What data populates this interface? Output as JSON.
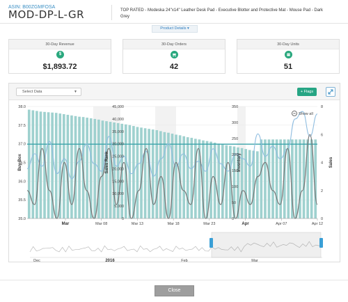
{
  "header": {
    "asin_label": "ASIN:",
    "asin": "B00ZGMFOSA",
    "sku": "MOD-DP-L-GR",
    "product_title": "TOP RATED - Modeska 24\"x14\" Leather Desk Pad - Executive Blotter and Protective Mat - Mouse Pad - Dark Grey"
  },
  "details_button": {
    "label": "Product Details ▾"
  },
  "stats": [
    {
      "caption": "30-Day Revenue",
      "icon": "dollar-icon",
      "value": "$1,893.72"
    },
    {
      "caption": "30-Day Orders",
      "icon": "cart-icon",
      "value": "42"
    },
    {
      "caption": "30-Day Units",
      "icon": "box-icon",
      "value": "51"
    }
  ],
  "toolbar": {
    "select_placeholder": "Select Data",
    "flags_label": "Flags",
    "show_all_label": "Show all"
  },
  "close_button": {
    "label": "Close"
  },
  "colors": {
    "bar": "#9fd1cf",
    "buy_box": "#3aa3a9",
    "sales_rank": "#8fbde0",
    "sales": "#777777",
    "accent": "#27a584"
  },
  "chart_data": {
    "type": "bar",
    "x_tick_labels": [
      "Mar",
      "Mar 08",
      "Mar 13",
      "Mar 18",
      "Mar 23",
      "Apr",
      "Apr 07",
      "Apr 12"
    ],
    "axes": [
      {
        "label": "Buy Box",
        "ticks": [
          "38.0",
          "37.5",
          "37.0",
          "36.5",
          "36.0",
          "35.5",
          "35.0"
        ],
        "range": [
          35,
          38
        ]
      },
      {
        "label": "Sales Rank",
        "ticks": [
          "45,000",
          "40,000",
          "35,000",
          "30,000",
          "25,000",
          "20,000",
          "15,000",
          "10,000",
          "5,000",
          "0"
        ],
        "range": [
          0,
          45000
        ]
      },
      {
        "label": "Inventory",
        "ticks": [
          "350",
          "300",
          "250",
          "200",
          "150",
          "100",
          "50",
          "0"
        ],
        "range": [
          0,
          350
        ]
      },
      {
        "label": "Sales",
        "ticks": [
          "8",
          "6",
          "4",
          "2",
          "0"
        ],
        "range": [
          0,
          8
        ]
      }
    ],
    "series": [
      {
        "name": "Inventory",
        "type": "bar",
        "values": [
          340,
          338,
          336,
          334,
          333,
          332,
          331,
          330,
          328,
          326,
          324,
          322,
          320,
          318,
          317,
          315,
          313,
          311,
          309,
          306,
          304,
          302,
          300,
          298,
          296,
          294,
          292,
          289,
          286,
          284,
          282,
          280,
          278,
          276,
          273,
          270,
          268,
          265,
          262,
          260,
          257,
          254,
          252,
          249,
          247,
          244,
          242,
          240,
          237,
          234,
          232,
          229,
          227,
          225,
          222,
          220,
          217,
          214,
          212,
          210,
          247,
          247,
          247,
          247,
          247,
          247,
          247,
          247,
          247,
          247,
          247,
          247,
          247,
          247,
          247
        ]
      },
      {
        "name": "Buy Box",
        "type": "line",
        "values": [
          36.99,
          36.99
        ]
      },
      {
        "name": "Sales Rank",
        "type": "line",
        "values": [
          20000,
          26000,
          21000,
          31000,
          18000,
          24000,
          16000,
          23000,
          30000,
          22000,
          19000,
          33000,
          21000,
          25000,
          18000,
          22000,
          27000,
          17000,
          24000,
          30000,
          21000,
          26000,
          20000,
          23000,
          19000,
          28000,
          22000,
          19000,
          26000,
          24000,
          21000,
          34000,
          25000,
          29000,
          24000,
          28000,
          40000,
          43000,
          33000,
          42000
        ]
      },
      {
        "name": "Sales",
        "type": "line",
        "values": [
          2,
          1,
          5,
          2,
          0,
          4,
          1,
          5,
          2,
          0,
          3,
          5,
          1,
          4,
          0,
          2,
          5,
          1,
          3,
          0,
          4,
          2,
          1,
          5,
          0,
          3,
          1,
          4,
          0,
          2,
          1,
          3,
          4,
          2,
          1,
          5,
          0,
          2,
          6,
          1
        ]
      }
    ],
    "navigator_labels": [
      "Dec",
      "2016",
      "Feb",
      "Mar"
    ],
    "grid": true
  }
}
